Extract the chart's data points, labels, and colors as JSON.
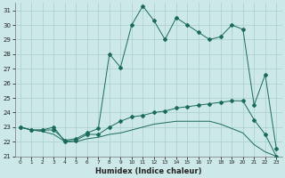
{
  "xlabel": "Humidex (Indice chaleur)",
  "background_color": "#cce8e8",
  "grid_color": "#aacece",
  "line_color": "#1a6b5a",
  "xlim": [
    -0.5,
    23.5
  ],
  "ylim": [
    21,
    31.5
  ],
  "yticks": [
    21,
    22,
    23,
    24,
    25,
    26,
    27,
    28,
    29,
    30,
    31
  ],
  "xticks": [
    0,
    1,
    2,
    3,
    4,
    5,
    6,
    7,
    8,
    9,
    10,
    11,
    12,
    13,
    14,
    15,
    16,
    17,
    18,
    19,
    20,
    21,
    22,
    23
  ],
  "curve1_x": [
    0,
    1,
    2,
    3,
    4,
    5,
    6,
    7,
    8,
    9,
    10,
    11,
    12,
    13,
    14,
    15,
    16,
    17,
    18,
    19,
    20,
    21,
    22,
    23
  ],
  "curve1_y": [
    23.0,
    22.8,
    22.8,
    22.8,
    22.1,
    22.2,
    22.6,
    22.9,
    28.0,
    27.1,
    30.0,
    31.3,
    30.3,
    29.0,
    30.5,
    30.0,
    29.5,
    29.0,
    29.2,
    30.0,
    29.7,
    24.5,
    26.6,
    21.5
  ],
  "curve2_x": [
    0,
    1,
    2,
    3,
    4,
    5,
    6,
    7,
    8,
    9,
    10,
    11,
    12,
    13,
    14,
    15,
    16,
    17,
    18,
    19,
    20,
    21,
    22,
    23
  ],
  "curve2_y": [
    23.0,
    22.8,
    22.8,
    23.0,
    22.0,
    22.1,
    22.5,
    22.5,
    23.0,
    23.4,
    23.7,
    23.8,
    24.0,
    24.1,
    24.3,
    24.4,
    24.5,
    24.6,
    24.7,
    24.8,
    24.8,
    23.5,
    22.5,
    21.0
  ],
  "curve3_x": [
    0,
    1,
    2,
    3,
    4,
    5,
    6,
    7,
    8,
    9,
    10,
    11,
    12,
    13,
    14,
    15,
    16,
    17,
    18,
    19,
    20,
    21,
    22,
    23
  ],
  "curve3_y": [
    23.0,
    22.8,
    22.7,
    22.5,
    22.0,
    22.0,
    22.2,
    22.3,
    22.5,
    22.6,
    22.8,
    23.0,
    23.2,
    23.3,
    23.4,
    23.4,
    23.4,
    23.4,
    23.2,
    22.9,
    22.6,
    21.8,
    21.3,
    21.0
  ]
}
